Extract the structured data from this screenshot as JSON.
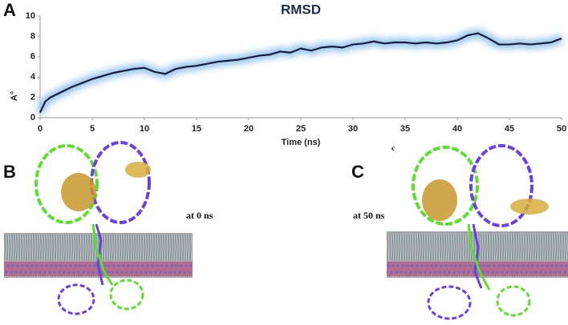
{
  "chart_data": {
    "type": "line",
    "title": "RMSD",
    "x_label": "Time (ns)",
    "y_label": "A°",
    "x": [
      0,
      0.5,
      1,
      2,
      3,
      4,
      5,
      6,
      7,
      8,
      9,
      10,
      11,
      12,
      13,
      14,
      15,
      16,
      17,
      18,
      19,
      20,
      21,
      22,
      23,
      24,
      25,
      26,
      27,
      28,
      29,
      30,
      31,
      32,
      33,
      34,
      35,
      36,
      37,
      38,
      39,
      40,
      41,
      42,
      43,
      44,
      45,
      46,
      47,
      48,
      49,
      50
    ],
    "series": [
      {
        "color": "#1c1c3c",
        "values": [
          0.5,
          1.6,
          2.0,
          2.5,
          3.0,
          3.4,
          3.8,
          4.1,
          4.4,
          4.6,
          4.8,
          4.9,
          4.5,
          4.3,
          4.8,
          5.0,
          5.1,
          5.3,
          5.5,
          5.6,
          5.7,
          5.9,
          6.1,
          6.2,
          6.5,
          6.4,
          6.8,
          6.6,
          6.9,
          7.0,
          6.9,
          7.2,
          7.3,
          7.5,
          7.3,
          7.4,
          7.4,
          7.3,
          7.4,
          7.3,
          7.4,
          7.6,
          8.1,
          8.3,
          7.8,
          7.2,
          7.2,
          7.3,
          7.2,
          7.3,
          7.4,
          7.8
        ]
      }
    ],
    "glow_color": "#9cc8ee",
    "xlim": [
      0,
      50
    ],
    "ylim": [
      0,
      10
    ],
    "xticks": [
      0,
      5,
      10,
      15,
      20,
      25,
      30,
      35,
      40,
      45,
      50
    ],
    "yticks": [
      0,
      2,
      4,
      6,
      8,
      10
    ]
  },
  "panels": {
    "a": "A",
    "b": "B",
    "c": "C"
  },
  "annotations": [
    "at 0 ns",
    "at 50 ns",
    "c"
  ]
}
